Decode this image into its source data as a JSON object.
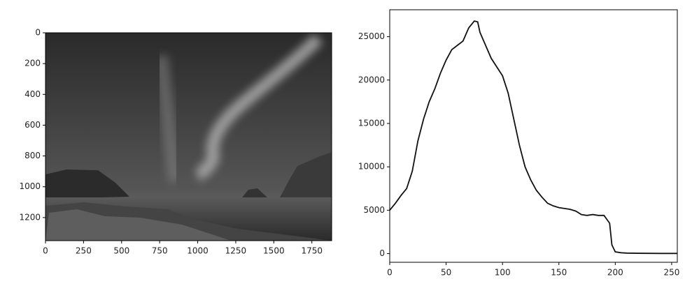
{
  "chart_data": [
    {
      "type": "image",
      "xlim": [
        0,
        1880
      ],
      "ylim": [
        1350,
        0
      ],
      "xticks": [
        0,
        250,
        500,
        750,
        1000,
        1250,
        1500,
        1750
      ],
      "yticks": [
        0,
        200,
        400,
        600,
        800,
        1000,
        1200
      ]
    },
    {
      "type": "line",
      "color": "#111111",
      "x": [
        0,
        5,
        10,
        15,
        20,
        25,
        30,
        35,
        40,
        45,
        50,
        55,
        60,
        65,
        70,
        75,
        78,
        80,
        85,
        90,
        95,
        100,
        105,
        110,
        115,
        120,
        125,
        130,
        135,
        140,
        145,
        150,
        155,
        160,
        165,
        170,
        175,
        180,
        185,
        190,
        195,
        197,
        200,
        205,
        210,
        220,
        230,
        240,
        255
      ],
      "y": [
        5000,
        5800,
        6700,
        7500,
        9500,
        13000,
        15500,
        17500,
        19000,
        20800,
        22300,
        23500,
        24000,
        24500,
        26000,
        26800,
        26700,
        25500,
        24000,
        22500,
        21500,
        20500,
        18500,
        15500,
        12500,
        10000,
        8500,
        7300,
        6500,
        5800,
        5500,
        5300,
        5200,
        5100,
        4900,
        4500,
        4400,
        4500,
        4400,
        4400,
        3500,
        1000,
        200,
        100,
        60,
        40,
        30,
        20,
        20
      ],
      "xlim": [
        0,
        255
      ],
      "ylim": [
        -1000,
        28100
      ],
      "xticks": [
        0,
        50,
        100,
        150,
        200,
        250
      ],
      "yticks": [
        0,
        5000,
        10000,
        15000,
        20000,
        25000
      ]
    }
  ]
}
